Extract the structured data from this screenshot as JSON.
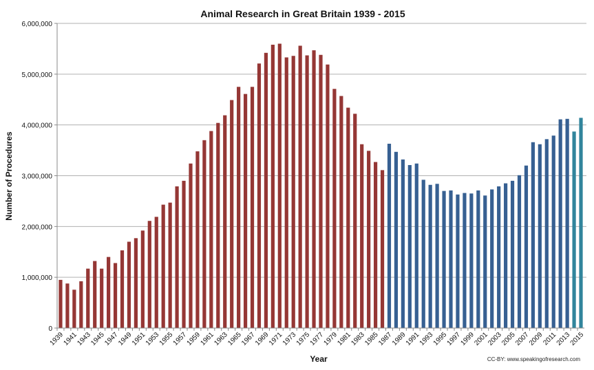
{
  "chart_data": {
    "type": "bar",
    "title": "Animal Research in Great Britain 1939 - 2015",
    "xlabel": "Year",
    "ylabel": "Number of Procedures",
    "ylim": [
      0,
      6000000
    ],
    "yticks": [
      0,
      1000000,
      2000000,
      3000000,
      4000000,
      5000000,
      6000000
    ],
    "ytick_labels": [
      "0",
      "1,000,000",
      "2,000,000",
      "3,000,000",
      "4,000,000",
      "5,000,000",
      "6,000,000"
    ],
    "grid": true,
    "legend": "none",
    "start_year": 1939,
    "label_every": 2,
    "values": [
      949000,
      877000,
      755000,
      921000,
      1170000,
      1320000,
      1170000,
      1400000,
      1280000,
      1530000,
      1700000,
      1770000,
      1920000,
      2110000,
      2190000,
      2430000,
      2470000,
      2790000,
      2900000,
      3240000,
      3480000,
      3700000,
      3880000,
      4040000,
      4190000,
      4490000,
      4750000,
      4610000,
      4750000,
      5210000,
      5420000,
      5580000,
      5600000,
      5330000,
      5360000,
      5560000,
      5370000,
      5470000,
      5380000,
      5190000,
      4710000,
      4570000,
      4340000,
      4220000,
      3620000,
      3490000,
      3270000,
      3110000,
      3630000,
      3470000,
      3320000,
      3210000,
      3240000,
      2920000,
      2820000,
      2840000,
      2700000,
      2710000,
      2630000,
      2660000,
      2650000,
      2710000,
      2610000,
      2730000,
      2790000,
      2850000,
      2900000,
      3010000,
      3200000,
      3660000,
      3620000,
      3720000,
      3790000,
      4110000,
      4120000,
      3870000,
      4140000
    ],
    "series_colors": {
      "1939-1986": "#953735",
      "1987-2013": "#376092",
      "2014-2015": "#31859c"
    }
  },
  "footnote": "CC-BY: www.speakingofresearch.com"
}
